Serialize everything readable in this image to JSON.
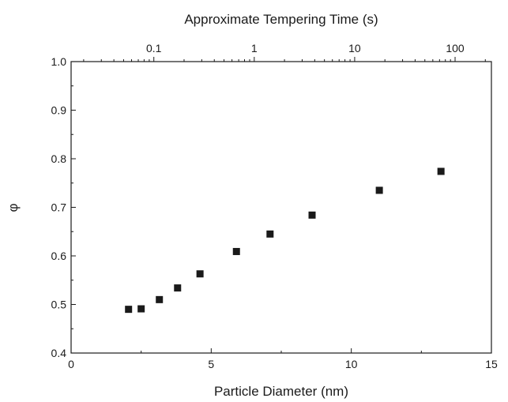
{
  "chart_data": {
    "type": "scatter",
    "xlabel": "Particle Diameter (nm)",
    "ylabel": "φ",
    "top_axis_label": "Approximate Tempering Time (s)",
    "xlim": [
      0,
      15
    ],
    "ylim": [
      0.4,
      1.0
    ],
    "top_axis_scale": "log",
    "top_axis_range": [
      0.015,
      230
    ],
    "x_ticks": [
      "0",
      "5",
      "10",
      "15"
    ],
    "y_ticks": [
      "0.4",
      "0.5",
      "0.6",
      "0.7",
      "0.8",
      "0.9",
      "1.0"
    ],
    "top_ticks": [
      "0.1",
      "1",
      "10",
      "100"
    ],
    "grid": false,
    "marker": "square",
    "marker_color": "#1a1a1a",
    "series": [
      {
        "points": [
          {
            "x": 2.05,
            "y": 0.49
          },
          {
            "x": 2.5,
            "y": 0.491
          },
          {
            "x": 3.15,
            "y": 0.51
          },
          {
            "x": 3.8,
            "y": 0.534
          },
          {
            "x": 4.6,
            "y": 0.563
          },
          {
            "x": 5.9,
            "y": 0.609
          },
          {
            "x": 7.1,
            "y": 0.645
          },
          {
            "x": 8.6,
            "y": 0.684
          },
          {
            "x": 11.0,
            "y": 0.735
          },
          {
            "x": 13.2,
            "y": 0.774
          }
        ]
      }
    ]
  }
}
